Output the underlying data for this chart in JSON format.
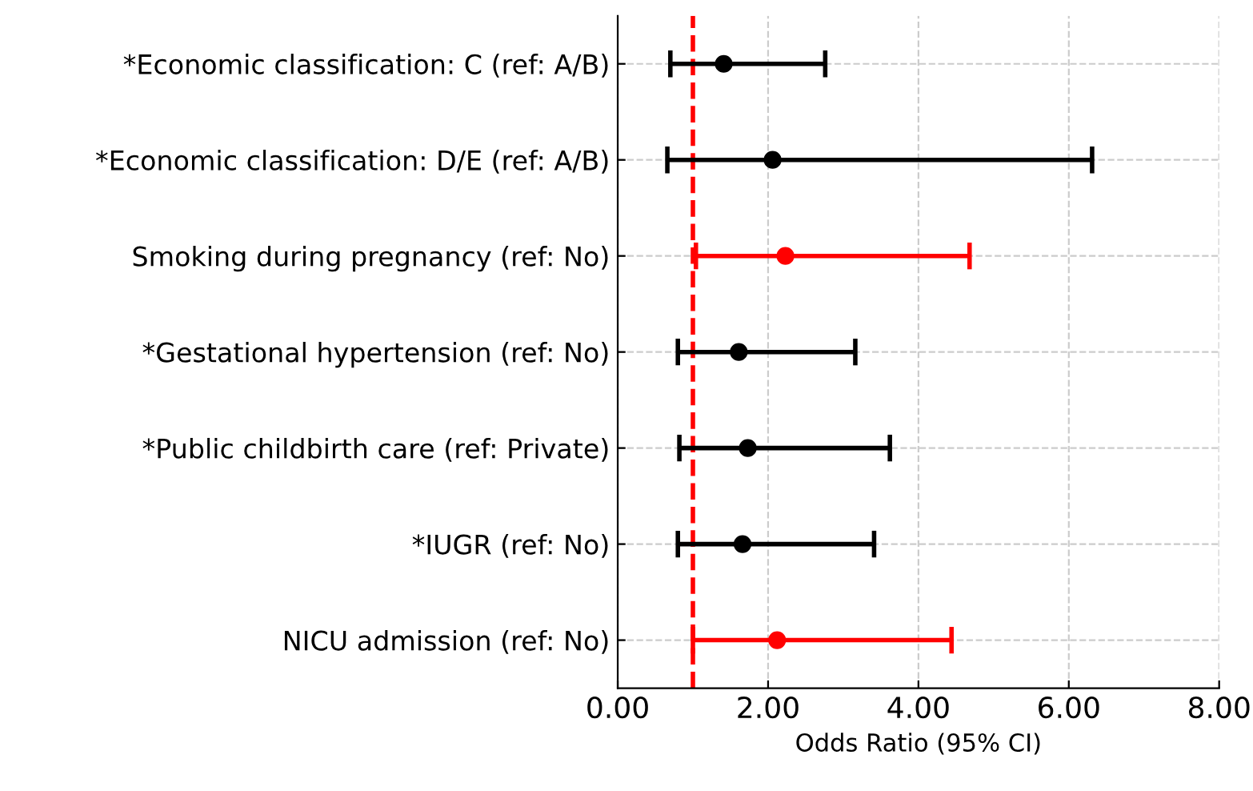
{
  "chart_data": {
    "type": "scatter",
    "orientation": "horizontal",
    "xlabel": "Odds Ratio (95% CI)",
    "categories": [
      "*Economic classification: C (ref: A/B)",
      "*Economic classification: D/E (ref: A/B)",
      "Smoking during pregnancy (ref: No)",
      "*Gestational hypertension (ref: No)",
      "*Public childbirth care (ref: Private)",
      "*IUGR (ref: No)",
      "NICU admission (ref: No)"
    ],
    "values": [
      1.41,
      2.06,
      2.23,
      1.61,
      1.73,
      1.66,
      2.12
    ],
    "errors": [
      [
        0.7,
        2.76
      ],
      [
        0.66,
        6.31
      ],
      [
        1.04,
        4.68
      ],
      [
        0.8,
        3.16
      ],
      [
        0.82,
        3.62
      ],
      [
        0.8,
        3.41
      ],
      [
        1.0,
        4.44
      ]
    ],
    "colors": [
      "#000000",
      "#000000",
      "#ff0000",
      "#000000",
      "#000000",
      "#000000",
      "#ff0000"
    ],
    "xlim": [
      0,
      8
    ],
    "xticks": [
      {
        "value": 0,
        "label": "0.00"
      },
      {
        "value": 2,
        "label": "2.00"
      },
      {
        "value": 4,
        "label": "4.00"
      },
      {
        "value": 6,
        "label": "6.00"
      },
      {
        "value": 8,
        "label": "8.00"
      }
    ],
    "ref_lines": [
      {
        "axis": "x",
        "value": 1,
        "color": "#ff0000",
        "line_style": "dashed"
      }
    ],
    "grid": true,
    "marker": "circle"
  }
}
